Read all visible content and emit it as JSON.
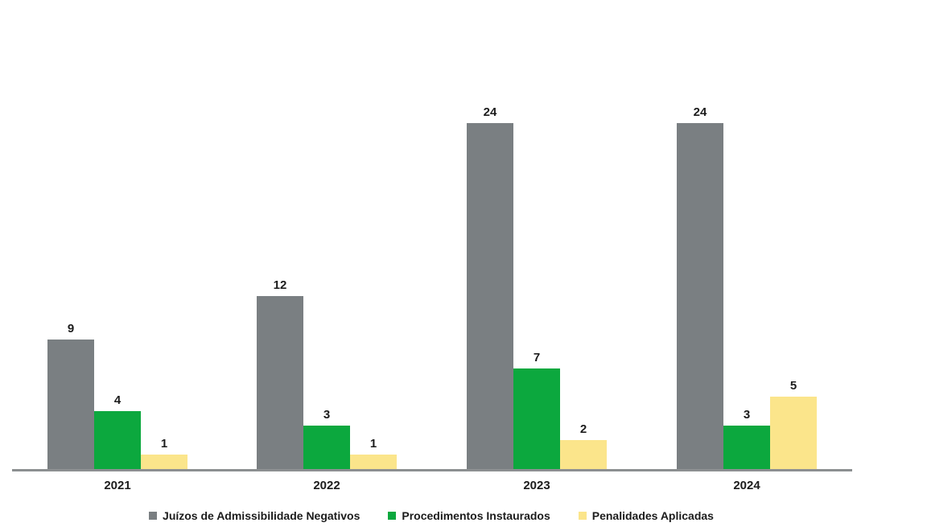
{
  "chart_data": {
    "type": "bar",
    "title": "",
    "xlabel": "",
    "ylabel": "",
    "categories": [
      "2021",
      "2022",
      "2023",
      "2024"
    ],
    "series": [
      {
        "name": "Juízos de Admissibilidade Negativos",
        "color": "#7a7f82",
        "values": [
          9,
          12,
          24,
          24
        ]
      },
      {
        "name": "Procedimentos Instaurados",
        "color": "#0ca83e",
        "values": [
          4,
          3,
          7,
          3
        ]
      },
      {
        "name": "Penalidades Aplicadas",
        "color": "#fbe58b",
        "values": [
          1,
          1,
          2,
          5
        ]
      }
    ],
    "ylim": [
      0,
      24
    ],
    "grid": false,
    "axis_color": "#8c8f91",
    "value_labels": true,
    "legend_position": "bottom"
  }
}
